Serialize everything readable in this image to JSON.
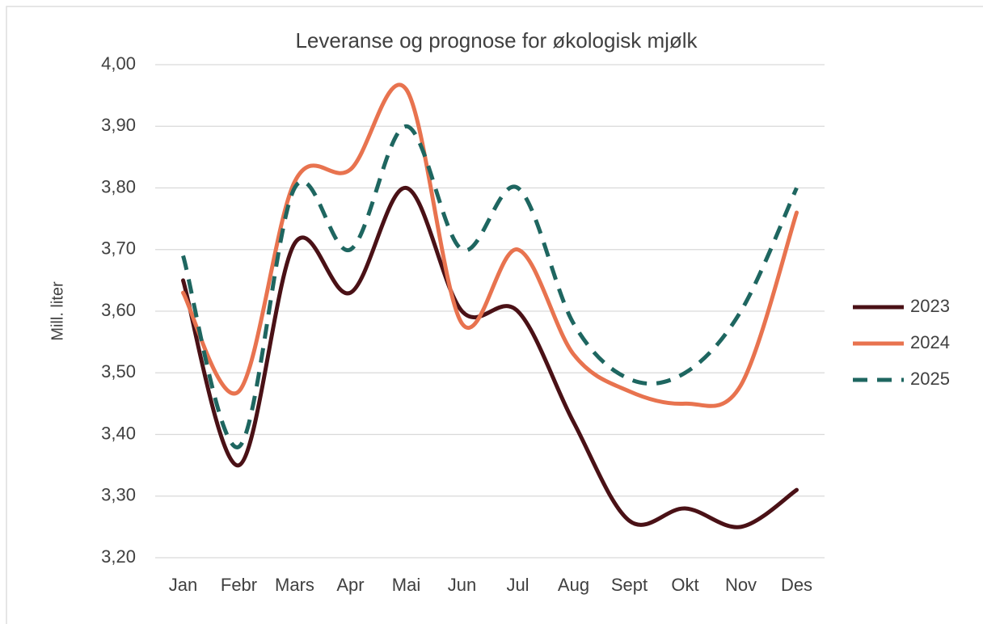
{
  "chart_data": {
    "type": "line",
    "title": "Leveranse og prognose for økologisk mjølk",
    "y_label": "Mill. liter",
    "categories": [
      "Jan",
      "Febr",
      "Mars",
      "Apr",
      "Mai",
      "Jun",
      "Jul",
      "Aug",
      "Sept",
      "Okt",
      "Nov",
      "Des"
    ],
    "series": [
      {
        "name": "2023",
        "color": "#4a1116",
        "line_style": "solid",
        "values": [
          3.65,
          3.35,
          3.71,
          3.63,
          3.8,
          3.6,
          3.6,
          3.42,
          3.26,
          3.28,
          3.25,
          3.31
        ]
      },
      {
        "name": "2024",
        "color": "#e8734f",
        "line_style": "solid",
        "values": [
          3.63,
          3.47,
          3.81,
          3.83,
          3.96,
          3.58,
          3.7,
          3.53,
          3.47,
          3.45,
          3.48,
          3.76
        ]
      },
      {
        "name": "2025",
        "color": "#1e6660",
        "line_style": "dashed",
        "values": [
          3.69,
          3.38,
          3.8,
          3.7,
          3.9,
          3.7,
          3.8,
          3.58,
          3.49,
          3.5,
          3.6,
          3.8
        ]
      }
    ],
    "ylim": [
      3.2,
      4.0
    ],
    "yticks": [
      {
        "value": 3.2,
        "label": "3,20"
      },
      {
        "value": 3.3,
        "label": "3,30"
      },
      {
        "value": 3.4,
        "label": "3,40"
      },
      {
        "value": 3.5,
        "label": "3,50"
      },
      {
        "value": 3.6,
        "label": "3,60"
      },
      {
        "value": 3.7,
        "label": "3,70"
      },
      {
        "value": 3.8,
        "label": "3,80"
      },
      {
        "value": 3.9,
        "label": "3,90"
      },
      {
        "value": 4.0,
        "label": "4,00"
      }
    ],
    "grid": true,
    "smooth": true,
    "legend": "right"
  }
}
